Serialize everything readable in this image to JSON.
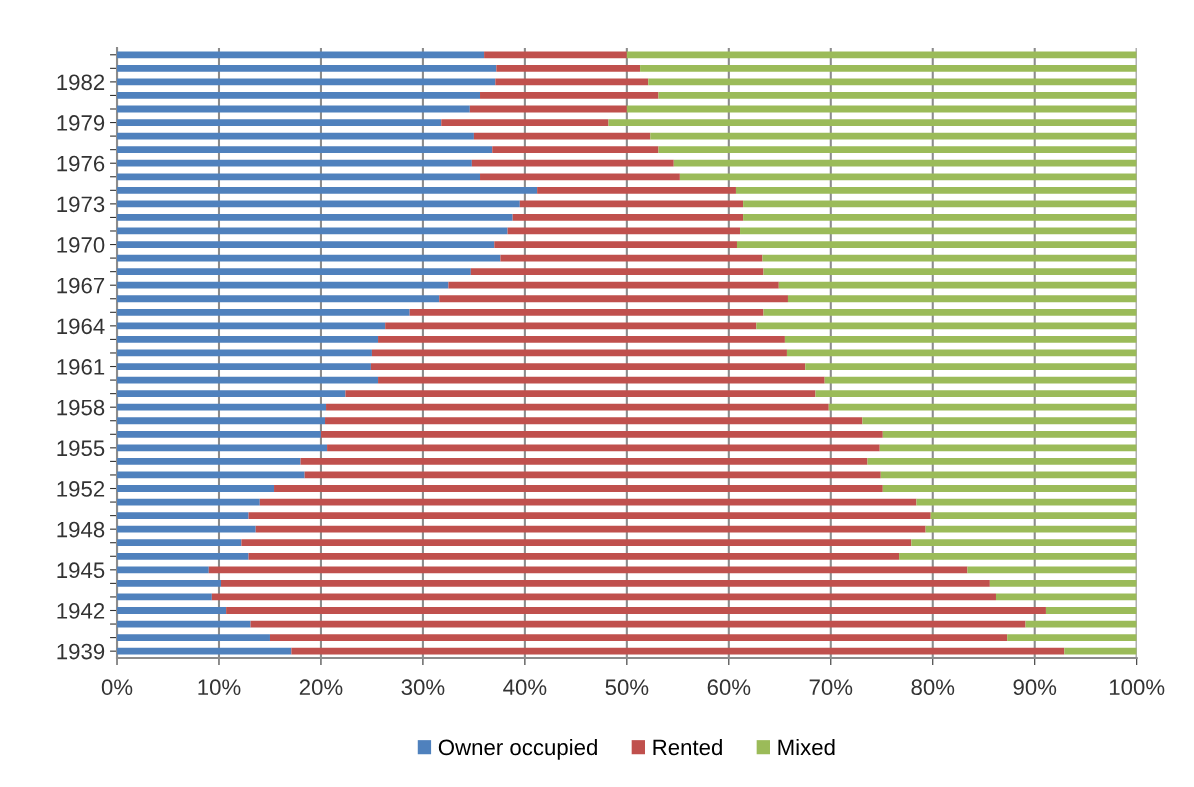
{
  "chart_data": {
    "type": "bar",
    "orientation": "horizontal",
    "stacked": true,
    "categories": [
      null,
      null,
      "1982",
      null,
      null,
      "1979",
      null,
      null,
      "1976",
      null,
      null,
      "1973",
      null,
      null,
      "1970",
      null,
      null,
      "1967",
      null,
      null,
      "1964",
      null,
      null,
      "1961",
      null,
      null,
      "1958",
      null,
      null,
      "1955",
      null,
      null,
      "1952",
      null,
      null,
      "1948",
      null,
      null,
      "1945",
      null,
      null,
      "1942",
      null,
      null,
      "1939"
    ],
    "series": [
      {
        "name": "Owner occupied",
        "color": "#4f81bd",
        "values": [
          36,
          37.2,
          37.1,
          35.6,
          34.6,
          31.8,
          35,
          36.8,
          34.8,
          35.6,
          41.2,
          39.5,
          38.8,
          38.3,
          37,
          37.6,
          34.7,
          32.5,
          31.6,
          28.7,
          26.3,
          25.6,
          25,
          24.9,
          25.6,
          22.4,
          20.5,
          20.4,
          20,
          20.6,
          18,
          18.4,
          15.4,
          14,
          12.9,
          13.6,
          12.2,
          12.9,
          9,
          10.2,
          9.3,
          10.7,
          13.1,
          15,
          17.1
        ]
      },
      {
        "name": "Rented",
        "color": "#c0504d",
        "values": [
          14,
          14.1,
          15,
          17.5,
          15.4,
          16.4,
          17.3,
          16.3,
          19.8,
          19.6,
          19.5,
          21.9,
          22.6,
          22.8,
          23.8,
          25.7,
          28.7,
          32.4,
          34.2,
          34.7,
          36.4,
          39.9,
          40.7,
          42.6,
          43.8,
          46.1,
          49.3,
          52.7,
          55.1,
          54.2,
          55.6,
          56.5,
          59.7,
          64.4,
          66.9,
          65.7,
          65.7,
          63.8,
          74.4,
          75.4,
          76.9,
          80.4,
          76,
          72.3,
          75.8
        ]
      },
      {
        "name": "Mixed",
        "color": "#9bbb59",
        "values": [
          50,
          48.7,
          47.9,
          46.9,
          50,
          51.8,
          47.7,
          46.9,
          45.4,
          44.8,
          39.3,
          38.6,
          38.6,
          38.9,
          39.2,
          36.7,
          36.6,
          35.1,
          34.2,
          36.6,
          37.3,
          34.5,
          34.3,
          32.5,
          30.6,
          31.5,
          30.2,
          26.9,
          24.9,
          25.2,
          26.4,
          25.1,
          24.9,
          21.6,
          20.2,
          20.7,
          22.1,
          23.3,
          16.6,
          14.4,
          13.8,
          8.9,
          10.9,
          12.7,
          7.1
        ]
      }
    ],
    "xlim": [
      0,
      100
    ],
    "xticks": [
      {
        "value": 0,
        "label": "0%"
      },
      {
        "value": 10,
        "label": "10%"
      },
      {
        "value": 20,
        "label": "20%"
      },
      {
        "value": 30,
        "label": "30%"
      },
      {
        "value": 40,
        "label": "40%"
      },
      {
        "value": 50,
        "label": "50%"
      },
      {
        "value": 60,
        "label": "60%"
      },
      {
        "value": 70,
        "label": "70%"
      },
      {
        "value": 80,
        "label": "80%"
      },
      {
        "value": 90,
        "label": "90%"
      },
      {
        "value": 100,
        "label": "100%"
      }
    ],
    "grid": "x",
    "legend": "bottom"
  }
}
